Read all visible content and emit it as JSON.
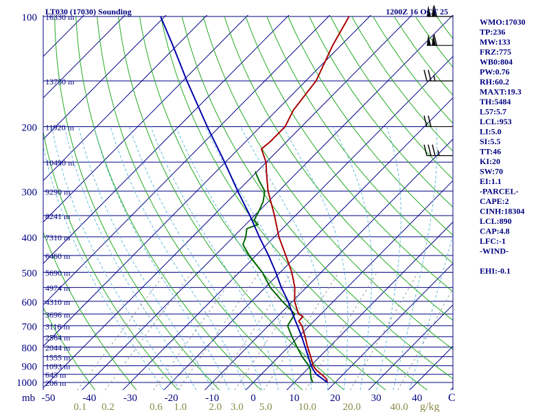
{
  "colors": {
    "isobar": "#000080",
    "isotherm": "#00008b",
    "dry_adiabat": "#22aa22",
    "moist_adiabat": "#66bbdd",
    "mixing_ratio": "#999999",
    "temperature": "#aa0000",
    "dewpoint": "#006600",
    "parcel": "#0000aa",
    "axis_text": "#000080",
    "mix_text": "#888844"
  },
  "chart_data": {
    "type": "skew-t",
    "title_left": "LT030 (17030) Sounding",
    "title_right": "1200Z 16 OCT 25",
    "y_unit_label": "mb",
    "x_unit_label": "C",
    "mixing_unit_label": "g/kg",
    "pressure_ticks": [
      "100",
      "200",
      "300",
      "400",
      "500",
      "600",
      "700",
      "800",
      "900",
      "1000"
    ],
    "temperature_ticks": [
      "-50",
      "-40",
      "-30",
      "-20",
      "-10",
      "0",
      "10",
      "20",
      "30",
      "40"
    ],
    "mixing_ratio_ticks": [
      "0.1",
      "0.2",
      "0.6",
      "1.0",
      "2.0",
      "3.0",
      "5.0",
      "10.0",
      "20.0",
      "40.0"
    ],
    "height_labels": [
      {
        "p": 100,
        "label": "16330 m"
      },
      {
        "p": 150,
        "label": "13750 m"
      },
      {
        "p": 200,
        "label": "11920 m"
      },
      {
        "p": 250,
        "label": "10490 m"
      },
      {
        "p": 300,
        "label": "9290 m"
      },
      {
        "p": 350,
        "label": "8241 m"
      },
      {
        "p": 400,
        "label": "7310 m"
      },
      {
        "p": 450,
        "label": "6460 m"
      },
      {
        "p": 500,
        "label": "5690 m"
      },
      {
        "p": 550,
        "label": "4974 m"
      },
      {
        "p": 600,
        "label": "4310 m"
      },
      {
        "p": 650,
        "label": "3696 m"
      },
      {
        "p": 700,
        "label": "3116 m"
      },
      {
        "p": 750,
        "label": "2564 m"
      },
      {
        "p": 800,
        "label": "2044 m"
      },
      {
        "p": 850,
        "label": "1555 m"
      },
      {
        "p": 900,
        "label": "1093 m"
      },
      {
        "p": 950,
        "label": "643 m"
      },
      {
        "p": 1000,
        "label": "206 m"
      }
    ],
    "p_range": [
      100,
      1000
    ],
    "t_range_at_1000mb": [
      -50,
      50
    ],
    "series": [
      {
        "name": "temperature",
        "points": [
          [
            1000,
            18.1
          ],
          [
            975,
            16.8
          ],
          [
            950,
            14.7
          ],
          [
            925,
            12.4
          ],
          [
            900,
            10.6
          ],
          [
            850,
            7.8
          ],
          [
            800,
            4.7
          ],
          [
            750,
            1.6
          ],
          [
            700,
            -1.8
          ],
          [
            680,
            -3.7
          ],
          [
            660,
            -3.8
          ],
          [
            650,
            -5.5
          ],
          [
            600,
            -9.5
          ],
          [
            550,
            -12.8
          ],
          [
            500,
            -17.2
          ],
          [
            450,
            -22.7
          ],
          [
            400,
            -28.9
          ],
          [
            350,
            -35.1
          ],
          [
            300,
            -42.6
          ],
          [
            270,
            -47.0
          ],
          [
            250,
            -50.1
          ],
          [
            230,
            -54.4
          ],
          [
            220,
            -54.0
          ],
          [
            200,
            -54.0
          ],
          [
            180,
            -56.0
          ],
          [
            150,
            -57.5
          ],
          [
            120,
            -62.0
          ],
          [
            100,
            -65.0
          ]
        ]
      },
      {
        "name": "dewpoint",
        "points": [
          [
            1000,
            14.5
          ],
          [
            975,
            13.2
          ],
          [
            950,
            12.0
          ],
          [
            925,
            11.0
          ],
          [
            900,
            9.5
          ],
          [
            850,
            5.7
          ],
          [
            800,
            2.1
          ],
          [
            750,
            -1.6
          ],
          [
            700,
            -5.3
          ],
          [
            650,
            -6.4
          ],
          [
            600,
            -12.5
          ],
          [
            550,
            -18.8
          ],
          [
            500,
            -24.4
          ],
          [
            450,
            -31.6
          ],
          [
            420,
            -35.8
          ],
          [
            400,
            -37.0
          ],
          [
            380,
            -38.7
          ],
          [
            370,
            -37.0
          ],
          [
            360,
            -39.0
          ],
          [
            340,
            -40.0
          ],
          [
            320,
            -41.3
          ],
          [
            300,
            -43.4
          ],
          [
            280,
            -47.5
          ],
          [
            265,
            -50.5
          ]
        ]
      },
      {
        "name": "parcel",
        "points": [
          [
            1000,
            18.1
          ],
          [
            975,
            15.8
          ],
          [
            950,
            13.4
          ],
          [
            925,
            11.7
          ],
          [
            900,
            10.1
          ],
          [
            850,
            7.2
          ],
          [
            800,
            4.1
          ],
          [
            750,
            0.8
          ],
          [
            700,
            -2.9
          ],
          [
            650,
            -6.9
          ],
          [
            600,
            -11.1
          ],
          [
            550,
            -16.1
          ],
          [
            500,
            -21.1
          ],
          [
            450,
            -26.9
          ],
          [
            400,
            -33.7
          ],
          [
            350,
            -41.1
          ],
          [
            300,
            -50.0
          ],
          [
            250,
            -60.2
          ],
          [
            200,
            -73.0
          ],
          [
            150,
            -89.0
          ],
          [
            120,
            -101.0
          ],
          [
            100,
            -111.0
          ]
        ]
      }
    ],
    "wind_barbs": [
      {
        "p": 100,
        "speed_kt": 110
      },
      {
        "p": 120,
        "speed_kt": 110
      },
      {
        "p": 150,
        "speed_kt": 25
      },
      {
        "p": 200,
        "speed_kt": 20
      },
      {
        "p": 240,
        "speed_kt": 35
      }
    ]
  },
  "indices": [
    "WMO:17030",
    "TP:236",
    "MW:133",
    "FRZ:775",
    "WB0:804",
    "PW:0.76",
    "RH:60.2",
    "MAXT:19.3",
    "TH:5484",
    "L57:5.7",
    "LCL:953",
    "LI:5.0",
    "SI:5.5",
    "TT:46",
    "KI:20",
    "SW:70",
    "EI:1.1",
    "-PARCEL-",
    "CAPE:2",
    "CINH:18304",
    "LCL:890",
    "CAP:4.8",
    "LFC:-1",
    "-WIND-",
    "",
    "EHI:-0.1"
  ]
}
